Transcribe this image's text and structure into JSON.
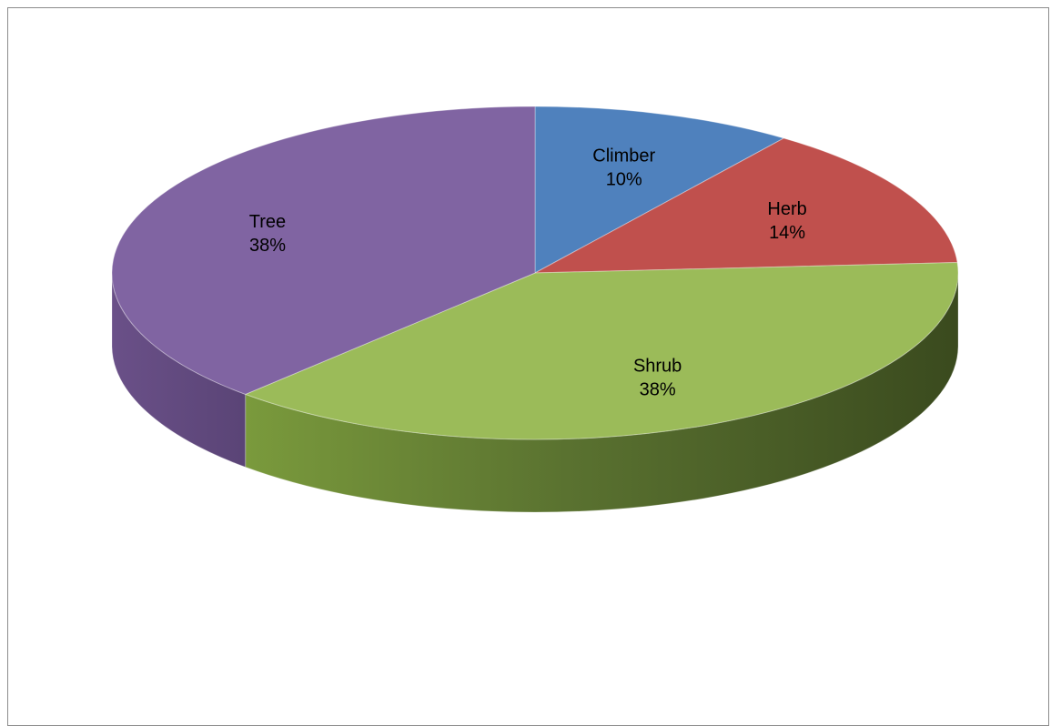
{
  "chart_data": {
    "type": "pie",
    "style": "3d",
    "slices": [
      {
        "name": "Climber",
        "value": 10,
        "percent_label": "10%",
        "color": "#4F81BD"
      },
      {
        "name": "Herb",
        "value": 14,
        "percent_label": "14%",
        "color": "#C0504D"
      },
      {
        "name": "Shrub",
        "value": 38,
        "percent_label": "38%",
        "color": "#9BBB59"
      },
      {
        "name": "Tree",
        "value": 38,
        "percent_label": "38%",
        "color": "#8064A2"
      }
    ],
    "legend": "none",
    "labels": "inside"
  }
}
